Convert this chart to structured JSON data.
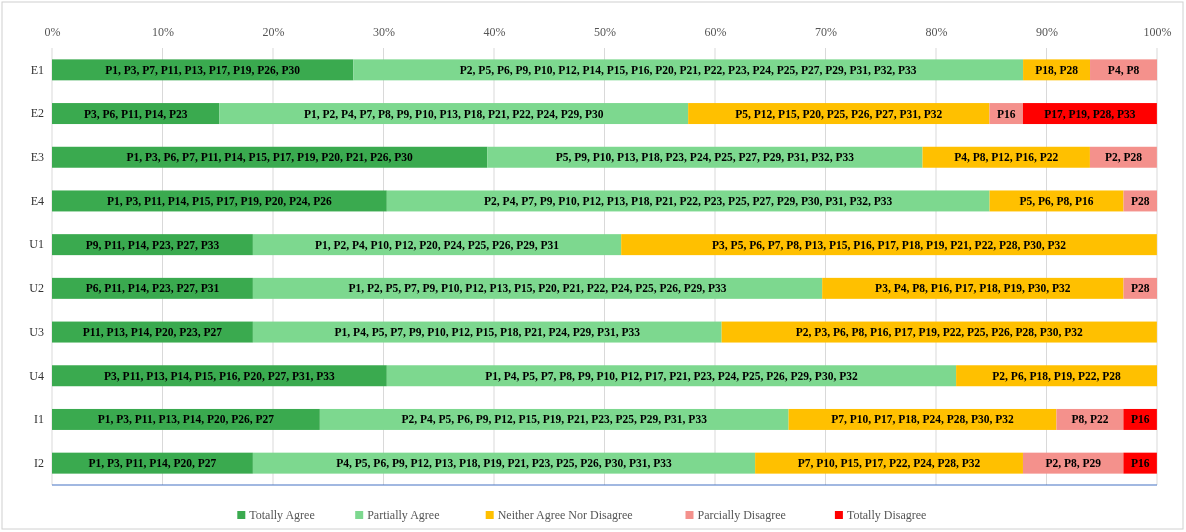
{
  "chart_data": {
    "type": "bar",
    "orientation": "horizontal",
    "stacked": true,
    "categories": [
      "E1",
      "E2",
      "E3",
      "E4",
      "U1",
      "U2",
      "U3",
      "U4",
      "I1",
      "I2"
    ],
    "xlim": [
      0,
      100
    ],
    "xticks": [
      {
        "value": 0,
        "label": "0%"
      },
      {
        "value": 10,
        "label": "10%"
      },
      {
        "value": 20,
        "label": "20%"
      },
      {
        "value": 30,
        "label": "30%"
      },
      {
        "value": 40,
        "label": "40%"
      },
      {
        "value": 50,
        "label": "50%"
      },
      {
        "value": 60,
        "label": "60%"
      },
      {
        "value": 70,
        "label": "70%"
      },
      {
        "value": 80,
        "label": "80%"
      },
      {
        "value": 90,
        "label": "90%"
      },
      {
        "value": 100,
        "label": "100%"
      }
    ],
    "grid": "x",
    "legend": "bottom",
    "series": [
      {
        "name": "Totally Agree",
        "color": "#3aaa4f",
        "values": [
          27.27,
          15.15,
          39.39,
          30.3,
          18.18,
          18.18,
          18.18,
          30.3,
          24.24,
          18.18
        ],
        "value_labels": [
          "P1, P3, P7, P11, P13, P17, P19, P26, P30",
          "P3, P6, P11, P14, P23",
          "P1, P3, P6, P7, P11, P14, P15, P17, P19, P20, P21, P26, P30",
          "P1, P3, P11, P14, P15, P17, P19, P20, P24, P26",
          "P9, P11, P14, P23, P27, P33",
          "P6, P11, P14, P23, P27, P31",
          "P11, P13, P14, P20, P23, P27",
          "P3, P11, P13, P14, P15, P16, P20, P27, P31, P33",
          "P1, P3, P11, P13, P14, P20, P26, P27",
          "P1, P3, P11, P14, P20, P27"
        ]
      },
      {
        "name": "Partially Agree",
        "color": "#7dd88f",
        "values": [
          60.61,
          42.42,
          39.39,
          54.55,
          33.33,
          51.52,
          42.42,
          51.52,
          42.42,
          45.45
        ],
        "value_labels": [
          "P2, P5, P6, P9, P10, P12, P14, P15, P16, P20, P21, P22, P23, P24, P25, P27, P29, P31, P32, P33",
          "P1, P2, P4, P7, P8, P9, P10, P13, P18, P21, P22, P24, P29, P30",
          "P5, P9, P10, P13, P18, P23, P24, P25, P27, P29, P31, P32, P33",
          "P2, P4, P7, P9, P10, P12, P13, P18, P21, P22, P23, P25, P27, P29, P30, P31, P32, P33",
          "P1, P2, P4, P10, P12, P20, P24, P25, P26, P29, P31",
          "P1, P2, P5, P7, P9, P10, P12, P13, P15, P20, P21, P22, P24, P25, P26, P29, P33",
          "P1, P4, P5, P7, P9, P10, P12, P15, P18, P21, P24, P29, P31, P33",
          "P1, P4, P5, P7, P8, P9, P10, P12, P17, P21, P23, P24, P25, P26, P29, P30, P32",
          "P2, P4, P5, P6, P9, P12, P15, P19, P21, P23, P25, P29, P31, P33",
          "P4, P5, P6, P9, P12, P13, P18, P19, P21, P23, P25, P26, P30, P31, P33"
        ]
      },
      {
        "name": "Neither Agree Nor Disagree",
        "color": "#ffc000",
        "values": [
          6.06,
          27.27,
          15.15,
          12.12,
          48.48,
          27.27,
          39.39,
          18.18,
          24.24,
          24.24
        ],
        "value_labels": [
          "P18, P28",
          "P5, P12, P15, P20, P25, P26, P27, P31, P32",
          "P4, P8, P12, P16, P22",
          "P5, P6, P8, P16",
          "P3, P5, P6, P7, P8, P13, P15, P16, P17, P18, P19, P21, P22, P28, P30, P32",
          "P3, P4, P8, P16, P17, P18, P19, P30, P32",
          "P2, P3, P6, P8, P16, P17, P19, P22, P25, P26, P28, P30, P32",
          "P2, P6, P18, P19, P22, P28",
          "P7, P10, P17, P18, P24, P28, P30, P32",
          "P7, P10, P15, P17, P22, P24, P28, P32"
        ]
      },
      {
        "name": "Parcially Disagree",
        "color": "#f4918c",
        "values": [
          6.06,
          3.03,
          6.06,
          3.03,
          0,
          3.03,
          0,
          0,
          6.06,
          9.09
        ],
        "value_labels": [
          "P4, P8",
          "P16",
          "P2, P28",
          "P28",
          null,
          "P28",
          null,
          null,
          "P8, P22",
          "P2, P8, P29"
        ]
      },
      {
        "name": "Totally Disagree",
        "color": "#ff0000",
        "values": [
          0,
          12.12,
          0,
          0,
          0,
          0,
          0,
          0,
          3.03,
          3.03
        ],
        "value_labels": [
          null,
          "P17, P19, P28, P33",
          null,
          null,
          null,
          null,
          null,
          null,
          "P16",
          "P16"
        ]
      }
    ]
  }
}
